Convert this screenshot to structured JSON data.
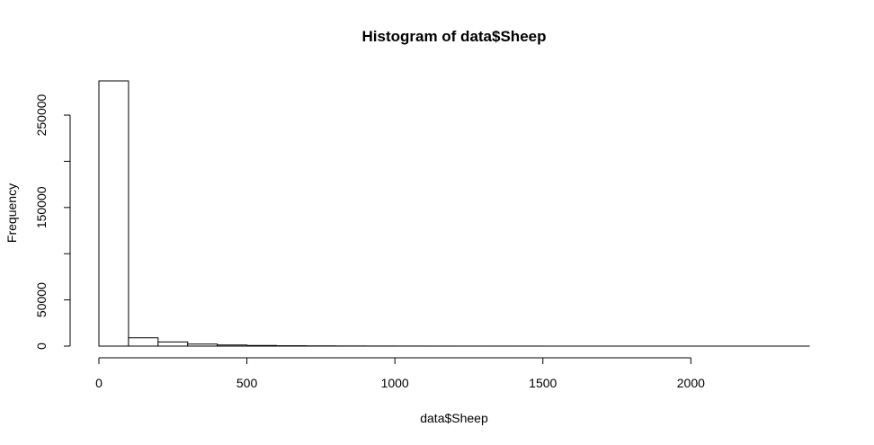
{
  "chart_data": {
    "type": "bar",
    "title": "Histogram of data$Sheep",
    "xlabel": "data$Sheep",
    "ylabel": "Frequency",
    "bin_width": 100,
    "bin_starts": [
      0,
      100,
      200,
      300,
      400,
      500,
      600,
      700,
      800,
      900,
      1000,
      1100,
      1200,
      1300,
      1400,
      1500,
      1600,
      1700,
      1800,
      1900,
      2000,
      2100,
      2200,
      2300
    ],
    "values": [
      287000,
      9000,
      4500,
      2200,
      1200,
      700,
      400,
      250,
      150,
      100,
      70,
      50,
      35,
      25,
      20,
      15,
      10,
      8,
      6,
      5,
      4,
      3,
      2,
      2
    ],
    "xlim": [
      0,
      2400
    ],
    "ylim": [
      0,
      287000
    ],
    "x_ticks": [
      0,
      500,
      1000,
      1500,
      2000
    ],
    "x_tick_labels": [
      "0",
      "500",
      "1000",
      "1500",
      "2000"
    ],
    "y_ticks": [
      0,
      50000,
      100000,
      150000,
      200000,
      250000
    ],
    "y_tick_labels": [
      "0",
      "50000",
      "",
      "150000",
      "",
      "250000"
    ],
    "grid": false,
    "colors": {
      "bar_fill": "#ffffff",
      "bar_stroke": "#000000"
    }
  }
}
